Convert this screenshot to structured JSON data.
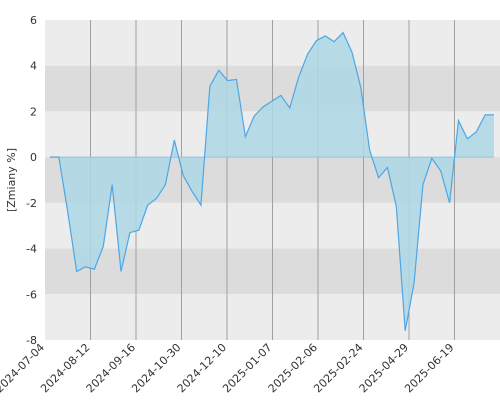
{
  "chart_data": {
    "type": "area",
    "title": "",
    "xlabel": "",
    "ylabel": "[Zmiany %]",
    "ylim": [
      -8,
      6
    ],
    "grid": true,
    "y_ticks": [
      -8,
      -6,
      -4,
      -2,
      0,
      2,
      4,
      6
    ],
    "x_ticks": [
      "2024-07-04",
      "2024-08-12",
      "2024-09-16",
      "2024-10-30",
      "2024-12-10",
      "2025-01-07",
      "2025-02-06",
      "2025-02-24",
      "2025-04-29",
      "2025-06-19"
    ],
    "colors": {
      "line": "#4da6e6",
      "fill": "#add8e6",
      "band_light": "#ececec",
      "band_dark": "#dcdcdc",
      "gridline": "#a0a0a0",
      "zero_line": "#8fc4e0"
    },
    "series": [
      {
        "x": [
          0,
          1,
          2,
          3,
          4,
          5,
          6,
          7,
          8,
          9,
          10,
          11,
          12,
          13,
          14,
          15,
          16,
          17,
          18,
          19,
          20,
          21,
          22,
          23,
          24,
          25,
          26,
          27,
          28,
          29,
          30,
          31,
          32,
          33,
          34,
          35,
          36,
          37,
          38,
          39,
          40,
          41,
          42,
          43,
          44,
          45,
          46,
          47,
          48,
          49,
          50
        ],
        "values": [
          0.0,
          0.0,
          -2.4,
          -5.0,
          -4.8,
          -4.9,
          -3.9,
          -1.2,
          -5.0,
          -3.3,
          -3.2,
          -2.1,
          -1.8,
          -1.2,
          0.75,
          -0.8,
          -1.5,
          -2.1,
          3.1,
          3.8,
          3.35,
          3.4,
          0.9,
          1.8,
          2.2,
          2.45,
          2.7,
          2.15,
          3.5,
          4.5,
          5.1,
          5.3,
          5.05,
          5.45,
          4.6,
          3.05,
          0.3,
          -0.9,
          -0.45,
          -2.15,
          -7.6,
          -5.5,
          -1.2,
          -0.05,
          -0.6,
          -2.0,
          1.6,
          0.8,
          1.1,
          1.85,
          1.85
        ]
      }
    ]
  }
}
